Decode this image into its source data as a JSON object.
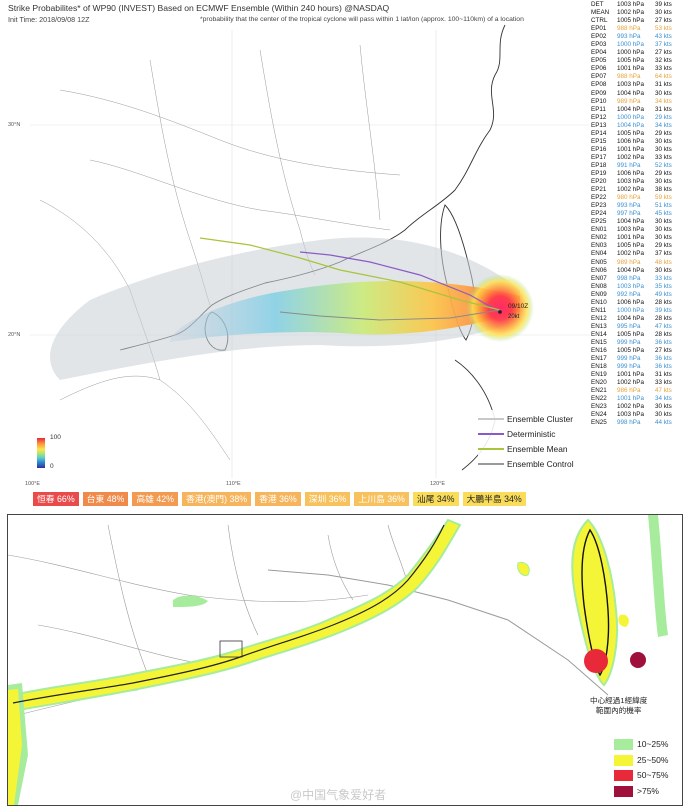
{
  "header": {
    "title": "Strike Probabilites* of WP90 (INVEST) Based on ECMWF Ensemble (Within 240 hours) @NASDAQ",
    "init_time": "Init Time: 2018/09/08 12Z",
    "note": "*probability that the center of the tropical cyclone will pass within 1 lat/lon (approx. 100~110km) of a location"
  },
  "axes": {
    "lat_labels": [
      "30°N",
      "20°N"
    ],
    "lon_labels": [
      "100°E",
      "110°E",
      "120°E"
    ]
  },
  "map_top": {
    "storm_label_date": "09/10Z",
    "storm_label_tag": "20kt"
  },
  "ensemble_table": [
    {
      "id": "DET",
      "pressure": "1003 hPa",
      "wind": "39 kts",
      "color": "#111111"
    },
    {
      "id": "MEAN",
      "pressure": "1002 hPa",
      "wind": "30 kts",
      "color": "#111111"
    },
    {
      "id": "CTRL",
      "pressure": "1005 hPa",
      "wind": "27 kts",
      "color": "#111111"
    },
    {
      "id": "EP01",
      "pressure": "988 hPa",
      "wind": "53 kts",
      "color": "#e8a23a"
    },
    {
      "id": "EP02",
      "pressure": "993 hPa",
      "wind": "43 kts",
      "color": "#3a8fd0"
    },
    {
      "id": "EP03",
      "pressure": "1000 hPa",
      "wind": "37 kts",
      "color": "#3a8fd0"
    },
    {
      "id": "EP04",
      "pressure": "1000 hPa",
      "wind": "27 kts",
      "color": "#111111"
    },
    {
      "id": "EP05",
      "pressure": "1005 hPa",
      "wind": "32 kts",
      "color": "#111111"
    },
    {
      "id": "EP06",
      "pressure": "1001 hPa",
      "wind": "33 kts",
      "color": "#111111"
    },
    {
      "id": "EP07",
      "pressure": "988 hPa",
      "wind": "64 kts",
      "color": "#e8a23a"
    },
    {
      "id": "EP08",
      "pressure": "1003 hPa",
      "wind": "31 kts",
      "color": "#111111"
    },
    {
      "id": "EP09",
      "pressure": "1004 hPa",
      "wind": "30 kts",
      "color": "#111111"
    },
    {
      "id": "EP10",
      "pressure": "989 hPa",
      "wind": "34 kts",
      "color": "#e8a23a"
    },
    {
      "id": "EP11",
      "pressure": "1004 hPa",
      "wind": "31 kts",
      "color": "#111111"
    },
    {
      "id": "EP12",
      "pressure": "1000 hPa",
      "wind": "29 kts",
      "color": "#3a8fd0"
    },
    {
      "id": "EP13",
      "pressure": "1004 hPa",
      "wind": "34 kts",
      "color": "#3a8fd0"
    },
    {
      "id": "EP14",
      "pressure": "1005 hPa",
      "wind": "29 kts",
      "color": "#111111"
    },
    {
      "id": "EP15",
      "pressure": "1006 hPa",
      "wind": "30 kts",
      "color": "#111111"
    },
    {
      "id": "EP16",
      "pressure": "1001 hPa",
      "wind": "30 kts",
      "color": "#111111"
    },
    {
      "id": "EP17",
      "pressure": "1002 hPa",
      "wind": "33 kts",
      "color": "#111111"
    },
    {
      "id": "EP18",
      "pressure": "991 hPa",
      "wind": "52 kts",
      "color": "#3a8fd0"
    },
    {
      "id": "EP19",
      "pressure": "1006 hPa",
      "wind": "29 kts",
      "color": "#111111"
    },
    {
      "id": "EP20",
      "pressure": "1003 hPa",
      "wind": "30 kts",
      "color": "#111111"
    },
    {
      "id": "EP21",
      "pressure": "1002 hPa",
      "wind": "38 kts",
      "color": "#111111"
    },
    {
      "id": "EP22",
      "pressure": "980 hPa",
      "wind": "59 kts",
      "color": "#e8a23a"
    },
    {
      "id": "EP23",
      "pressure": "993 hPa",
      "wind": "51 kts",
      "color": "#3a8fd0"
    },
    {
      "id": "EP24",
      "pressure": "997 hPa",
      "wind": "45 kts",
      "color": "#3a8fd0"
    },
    {
      "id": "EP25",
      "pressure": "1004 hPa",
      "wind": "30 kts",
      "color": "#111111"
    },
    {
      "id": "EN01",
      "pressure": "1003 hPa",
      "wind": "30 kts",
      "color": "#111111"
    },
    {
      "id": "EN02",
      "pressure": "1001 hPa",
      "wind": "30 kts",
      "color": "#111111"
    },
    {
      "id": "EN03",
      "pressure": "1005 hPa",
      "wind": "29 kts",
      "color": "#111111"
    },
    {
      "id": "EN04",
      "pressure": "1002 hPa",
      "wind": "37 kts",
      "color": "#111111"
    },
    {
      "id": "EN05",
      "pressure": "989 hPa",
      "wind": "48 kts",
      "color": "#e8a23a"
    },
    {
      "id": "EN06",
      "pressure": "1004 hPa",
      "wind": "30 kts",
      "color": "#111111"
    },
    {
      "id": "EN07",
      "pressure": "998 hPa",
      "wind": "33 kts",
      "color": "#3a8fd0"
    },
    {
      "id": "EN08",
      "pressure": "1003 hPa",
      "wind": "35 kts",
      "color": "#3a8fd0"
    },
    {
      "id": "EN09",
      "pressure": "992 hPa",
      "wind": "49 kts",
      "color": "#3a8fd0"
    },
    {
      "id": "EN10",
      "pressure": "1006 hPa",
      "wind": "28 kts",
      "color": "#111111"
    },
    {
      "id": "EN11",
      "pressure": "1000 hPa",
      "wind": "39 kts",
      "color": "#3a8fd0"
    },
    {
      "id": "EN12",
      "pressure": "1004 hPa",
      "wind": "28 kts",
      "color": "#111111"
    },
    {
      "id": "EN13",
      "pressure": "995 hPa",
      "wind": "47 kts",
      "color": "#3a8fd0"
    },
    {
      "id": "EN14",
      "pressure": "1005 hPa",
      "wind": "28 kts",
      "color": "#111111"
    },
    {
      "id": "EN15",
      "pressure": "999 hPa",
      "wind": "36 kts",
      "color": "#3a8fd0"
    },
    {
      "id": "EN16",
      "pressure": "1005 hPa",
      "wind": "27 kts",
      "color": "#111111"
    },
    {
      "id": "EN17",
      "pressure": "999 hPa",
      "wind": "36 kts",
      "color": "#3a8fd0"
    },
    {
      "id": "EN18",
      "pressure": "999 hPa",
      "wind": "36 kts",
      "color": "#3a8fd0"
    },
    {
      "id": "EN19",
      "pressure": "1001 hPa",
      "wind": "31 kts",
      "color": "#111111"
    },
    {
      "id": "EN20",
      "pressure": "1002 hPa",
      "wind": "33 kts",
      "color": "#111111"
    },
    {
      "id": "EN21",
      "pressure": "986 hPa",
      "wind": "47 kts",
      "color": "#e8a23a"
    },
    {
      "id": "EN22",
      "pressure": "1001 hPa",
      "wind": "34 kts",
      "color": "#3a8fd0"
    },
    {
      "id": "EN23",
      "pressure": "1002 hPa",
      "wind": "30 kts",
      "color": "#111111"
    },
    {
      "id": "EN24",
      "pressure": "1003 hPa",
      "wind": "30 kts",
      "color": "#111111"
    },
    {
      "id": "EN25",
      "pressure": "998 hPa",
      "wind": "44 kts",
      "color": "#3a8fd0"
    }
  ],
  "legend_top": {
    "items": [
      {
        "label": "Ensemble Cluster",
        "color": "#c8c8c8"
      },
      {
        "label": "Deterministic",
        "color": "#8a5ac8"
      },
      {
        "label": "Ensemble Mean",
        "color": "#a8c43a"
      },
      {
        "label": "Ensemble Control",
        "color": "#9a9a9a"
      }
    ],
    "colorbar_max": "100",
    "colorbar_min": "0"
  },
  "place_probabilities": [
    {
      "label": "恒春 66%",
      "bg": "#e94b4b",
      "fg": "#ffffff"
    },
    {
      "label": "台東 48%",
      "bg": "#f08a4a",
      "fg": "#ffffff"
    },
    {
      "label": "高雄 42%",
      "bg": "#f29a50",
      "fg": "#ffffff"
    },
    {
      "label": "香港(澳門) 38%",
      "bg": "#f6b55c",
      "fg": "#ffffff"
    },
    {
      "label": "香港 36%",
      "bg": "#f6b55c",
      "fg": "#ffffff"
    },
    {
      "label": "深圳 36%",
      "bg": "#f7c25e",
      "fg": "#ffffff"
    },
    {
      "label": "上川島 36%",
      "bg": "#f7c25e",
      "fg": "#ffffff"
    },
    {
      "label": "汕尾 34%",
      "bg": "#f9dc5a",
      "fg": "#222222"
    },
    {
      "label": "大鵬半島 34%",
      "bg": "#f9dc5a",
      "fg": "#222222"
    }
  ],
  "bottom_map": {
    "annotation_line1": "中心經過1經緯度",
    "annotation_line2": "範圍內的機率",
    "legend": [
      {
        "label": "10~25%",
        "color": "#a6ec9c"
      },
      {
        "label": "25~50%",
        "color": "#f5f538"
      },
      {
        "label": "50~75%",
        "color": "#e8293a"
      },
      {
        "label": ">75%",
        "color": "#a0103c"
      }
    ]
  },
  "watermark": "@中国气象爱好者"
}
